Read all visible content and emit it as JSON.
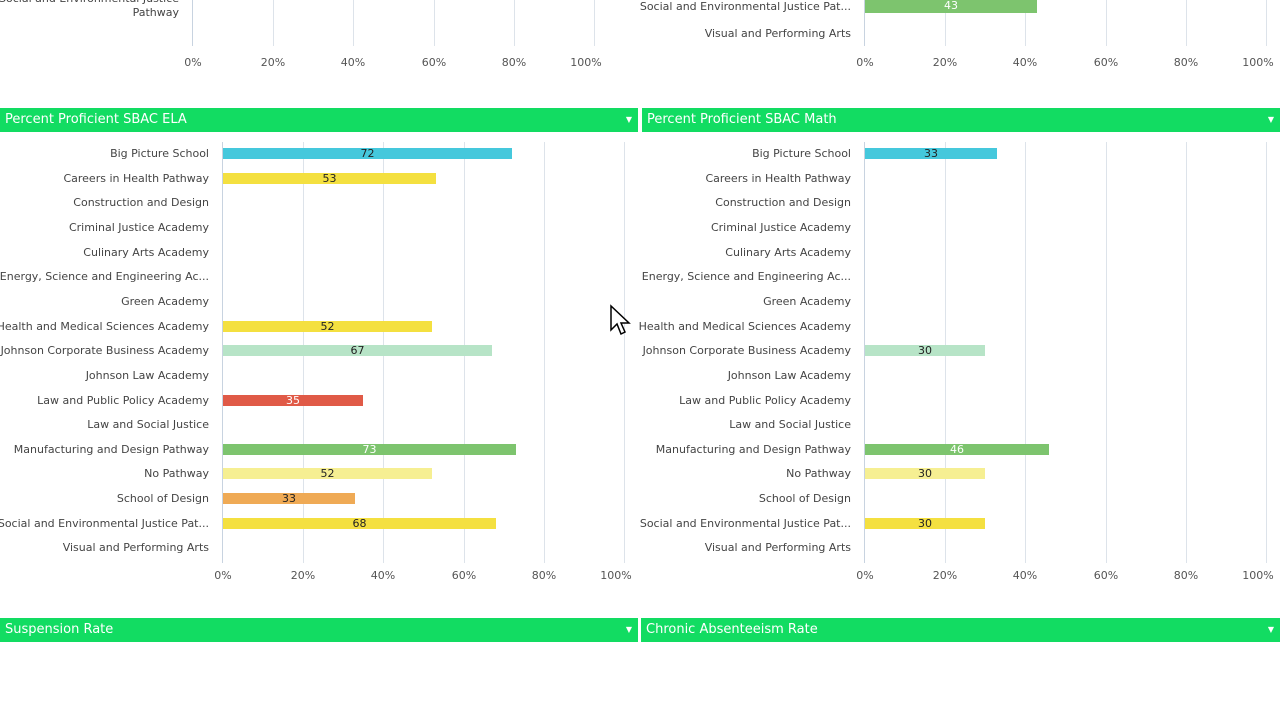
{
  "colors": {
    "header": "#12dc62",
    "cyan": "#45c8dc",
    "yellow": "#f4e040",
    "mint": "#b7e4c7",
    "red": "#e05a47",
    "green": "#7dc46e",
    "paleyellow": "#f6ef92",
    "orange": "#efaa55"
  },
  "top_left": {
    "labels": [
      "Social and Environmental Justice",
      "Pathway"
    ],
    "ticks": [
      "0%",
      "20%",
      "40%",
      "60%",
      "80%",
      "100%"
    ]
  },
  "top_right": {
    "labels": [
      "Social and Environmental Justice Pat...",
      "Visual and Performing Arts"
    ],
    "bar": {
      "value": 43,
      "color": "#7dc46e"
    },
    "ticks": [
      "0%",
      "20%",
      "40%",
      "60%",
      "80%",
      "100%"
    ]
  },
  "panels": [
    {
      "title": "Percent Proficient SBAC ELA"
    },
    {
      "title": "Percent Proficient SBAC Math"
    },
    {
      "title": "Suspension Rate"
    },
    {
      "title": "Chronic Absenteeism Rate"
    }
  ],
  "chart_data": [
    {
      "type": "bar",
      "orientation": "horizontal",
      "title": "Percent Proficient SBAC ELA",
      "xlim": [
        0,
        100
      ],
      "ticks": [
        "0%",
        "20%",
        "40%",
        "60%",
        "80%",
        "100%"
      ],
      "categories": [
        "Big Picture School",
        "Careers in Health Pathway",
        "Construction and Design",
        "Criminal Justice Academy",
        "Culinary Arts Academy",
        "Energy, Science and Engineering Ac...",
        "Green Academy",
        "Health and Medical Sciences Academy",
        "Johnson Corporate Business Academy",
        "Johnson Law Academy",
        "Law and Public Policy Academy",
        "Law and Social Justice",
        "Manufacturing and Design Pathway",
        "No Pathway",
        "School of Design",
        "Social and Environmental Justice Pat...",
        "Visual and Performing Arts"
      ],
      "values": [
        72,
        53,
        null,
        null,
        null,
        null,
        null,
        52,
        67,
        null,
        35,
        null,
        73,
        52,
        33,
        68,
        null
      ],
      "bar_colors": [
        "#45c8dc",
        "#f4e040",
        null,
        null,
        null,
        null,
        null,
        "#f4e040",
        "#b7e4c7",
        null,
        "#e05a47",
        null,
        "#7dc46e",
        "#f6ef92",
        "#efaa55",
        "#f4e040",
        null
      ]
    },
    {
      "type": "bar",
      "orientation": "horizontal",
      "title": "Percent Proficient SBAC Math",
      "xlim": [
        0,
        100
      ],
      "ticks": [
        "0%",
        "20%",
        "40%",
        "60%",
        "80%",
        "100%"
      ],
      "categories": [
        "Big Picture School",
        "Careers in Health Pathway",
        "Construction and Design",
        "Criminal Justice Academy",
        "Culinary Arts Academy",
        "Energy, Science and Engineering Ac...",
        "Green Academy",
        "Health and Medical Sciences Academy",
        "Johnson Corporate Business Academy",
        "Johnson Law Academy",
        "Law and Public Policy Academy",
        "Law and Social Justice",
        "Manufacturing and Design Pathway",
        "No Pathway",
        "School of Design",
        "Social and Environmental Justice Pat...",
        "Visual and Performing Arts"
      ],
      "values": [
        33,
        null,
        null,
        null,
        null,
        null,
        null,
        null,
        30,
        null,
        null,
        null,
        46,
        30,
        null,
        30,
        null
      ],
      "bar_colors": [
        "#45c8dc",
        null,
        null,
        null,
        null,
        null,
        null,
        null,
        "#b7e4c7",
        null,
        null,
        null,
        "#7dc46e",
        "#f6ef92",
        null,
        "#f4e040",
        null
      ]
    }
  ]
}
